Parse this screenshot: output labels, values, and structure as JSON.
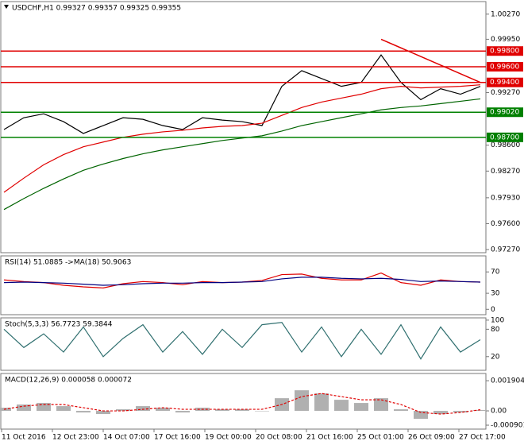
{
  "chart_data": [
    {
      "type": "line",
      "title": "USDCHF,H1 0.99327 0.99357 0.99325 0.99355",
      "ylim": [
        0.9723,
        1.0043
      ],
      "yticks": [
        {
          "value": 1.0027,
          "label": "1.00270"
        },
        {
          "value": 0.9995,
          "label": "0.99950"
        },
        {
          "value": 0.9927,
          "label": "0.99270"
        },
        {
          "value": 0.986,
          "label": "0.98600"
        },
        {
          "value": 0.9827,
          "label": "0.98270"
        },
        {
          "value": 0.9793,
          "label": "0.97930"
        },
        {
          "value": 0.976,
          "label": "0.97600"
        },
        {
          "value": 0.9727,
          "label": "0.97270"
        }
      ],
      "series": [
        {
          "color": "#000000",
          "values": [
            0.988,
            0.9895,
            0.99,
            0.989,
            0.9875,
            0.9885,
            0.9895,
            0.9893,
            0.9885,
            0.988,
            0.9895,
            0.9892,
            0.989,
            0.9885,
            0.9935,
            0.9955,
            0.9945,
            0.9935,
            0.994,
            0.9975,
            0.994,
            0.9918,
            0.9932,
            0.9925,
            0.9935
          ]
        },
        {
          "color": "#e00000",
          "values": [
            0.98,
            0.9818,
            0.9835,
            0.9848,
            0.9858,
            0.9864,
            0.987,
            0.9874,
            0.9877,
            0.9879,
            0.9882,
            0.9884,
            0.9885,
            0.9888,
            0.9898,
            0.9908,
            0.9915,
            0.992,
            0.9925,
            0.9932,
            0.9935,
            0.9933,
            0.9934,
            0.9935,
            0.9937
          ]
        },
        {
          "color": "#006400",
          "values": [
            0.9778,
            0.9792,
            0.9805,
            0.9817,
            0.9828,
            0.9836,
            0.9843,
            0.9849,
            0.9854,
            0.9858,
            0.9862,
            0.9866,
            0.9869,
            0.9872,
            0.9878,
            0.9885,
            0.989,
            0.9895,
            0.99,
            0.9905,
            0.9908,
            0.991,
            0.9913,
            0.9916,
            0.9919
          ]
        }
      ],
      "levels": [
        {
          "value": 0.998,
          "label": "0.99800",
          "color": "#e00000"
        },
        {
          "value": 0.996,
          "label": "0.99600",
          "color": "#e00000"
        },
        {
          "value": 0.994,
          "label": "0.99400",
          "color": "#e00000"
        },
        {
          "value": 0.9902,
          "label": "0.99020",
          "color": "#008000"
        },
        {
          "value": 0.987,
          "label": "0.98700",
          "color": "#008000"
        }
      ],
      "trendline": {
        "color": "#e00000",
        "x": [
          19,
          24
        ],
        "values": [
          0.9995,
          0.994
        ]
      }
    },
    {
      "type": "line",
      "title": "RSI(14) 51.0885 ->MA(18) 50.9063",
      "ylim": [
        -10,
        100
      ],
      "yticks": [
        70,
        30,
        0
      ],
      "series": [
        {
          "color": "#e00000",
          "values": [
            55,
            52,
            50,
            45,
            42,
            40,
            48,
            52,
            50,
            46,
            52,
            50,
            51,
            54,
            65,
            66,
            58,
            55,
            55,
            68,
            50,
            45,
            55,
            52,
            51
          ]
        },
        {
          "color": "#000080",
          "values": [
            50,
            51,
            50,
            49,
            47,
            45,
            46,
            48,
            49,
            49,
            50,
            50,
            51,
            52,
            57,
            60,
            60,
            58,
            57,
            58,
            56,
            52,
            53,
            52,
            51
          ]
        }
      ]
    },
    {
      "type": "line",
      "title": "Stoch(5,3,3) 56.7723 59.3844",
      "ylim": [
        -10,
        105
      ],
      "yticks": [
        100,
        80,
        20
      ],
      "series": [
        {
          "color": "#2f6f6f",
          "values": [
            80,
            40,
            70,
            30,
            85,
            20,
            60,
            90,
            30,
            75,
            25,
            80,
            40,
            90,
            95,
            30,
            85,
            20,
            80,
            25,
            90,
            15,
            85,
            30,
            57
          ]
        }
      ]
    },
    {
      "type": "bar",
      "title": "MACD(12,26,9) 0.000058 0.000072",
      "ylim": [
        -0.00115,
        0.00236
      ],
      "yticks": [
        0.001904,
        {
          "value": 0,
          "label": "0.00"
        },
        -0.000901
      ],
      "series": [
        {
          "kind": "bar",
          "color": "#b0b0b0",
          "values": [
            0.0002,
            0.0004,
            0.0005,
            0.0003,
            -0.0001,
            -0.0002,
            0.0001,
            0.0003,
            0.0002,
            -0.0001,
            0.0002,
            0.0001,
            0.0001,
            0,
            0.0008,
            0.0013,
            0.0011,
            0.0007,
            0.0005,
            0.0008,
            0.0001,
            -0.0005,
            -0.0002,
            -0.0001,
            5.8e-05
          ]
        },
        {
          "kind": "line",
          "dash": true,
          "color": "#e00000",
          "values": [
            0.0001,
            0.0003,
            0.0004,
            0.0004,
            0.0002,
            0,
            0,
            0.0001,
            0.0002,
            0.0001,
            0.0001,
            0.0001,
            0.0001,
            0.0001,
            0.0004,
            0.0009,
            0.0011,
            0.0009,
            0.0007,
            0.0007,
            0.0004,
            -0.0001,
            -0.0002,
            -0.0001,
            7.2e-05
          ]
        }
      ],
      "x_axis_labels": [
        "11 Oct 2016",
        "12 Oct 23:00",
        "14 Oct 07:00",
        "17 Oct 16:00",
        "19 Oct 00:00",
        "20 Oct 08:00",
        "21 Oct 16:00",
        "25 Oct 01:00",
        "26 Oct 09:00",
        "27 Oct 17:00"
      ]
    }
  ]
}
